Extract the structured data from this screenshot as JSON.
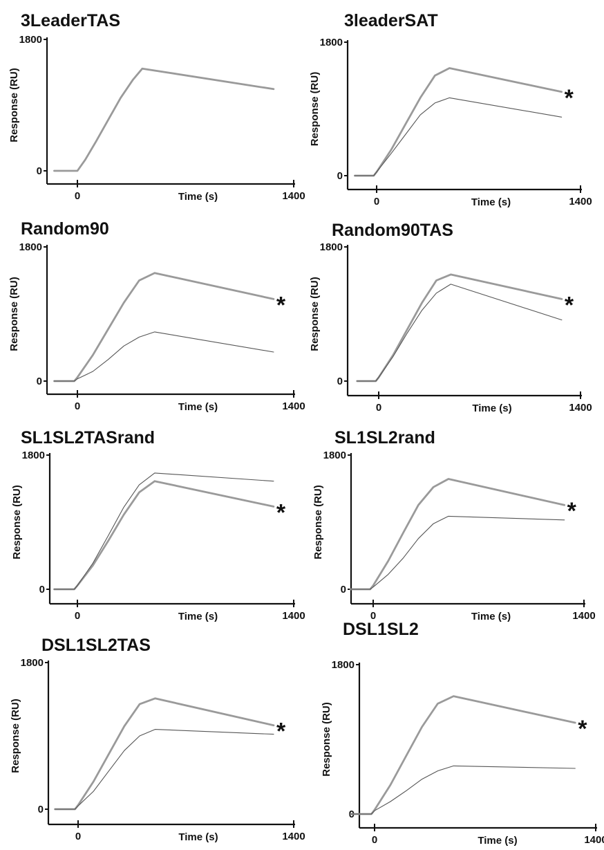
{
  "chart_data": [
    {
      "type": "line",
      "title": "3LeaderTAS",
      "xlabel": "Time (s)",
      "ylabel": "Response (RU)",
      "xlim": [
        -250,
        1400
      ],
      "ylim": [
        -100,
        1800
      ],
      "xticks": [
        0,
        1400
      ],
      "yticks": [
        0,
        1800
      ],
      "series": [
        {
          "x": [
            -150,
            0,
            50,
            120,
            200,
            280,
            360,
            420,
            1270
          ],
          "y": [
            0,
            0,
            150,
            400,
            700,
            1000,
            1250,
            1400,
            1120
          ]
        }
      ]
    },
    {
      "type": "line",
      "title": "3leaderSAT",
      "xlabel": "Time (s)",
      "ylabel": "Response (RU)",
      "xlim": [
        -250,
        1400
      ],
      "ylim": [
        -100,
        1800
      ],
      "xticks": [
        0,
        1400
      ],
      "yticks": [
        0,
        1800
      ],
      "annotation": "*",
      "series": [
        {
          "x": [
            -150,
            -20,
            0,
            100,
            200,
            300,
            400,
            500,
            1270
          ],
          "y": [
            0,
            0,
            50,
            350,
            700,
            1050,
            1350,
            1450,
            1130
          ]
        },
        {
          "x": [
            -150,
            -20,
            0,
            100,
            200,
            300,
            400,
            500,
            1270
          ],
          "y": [
            0,
            0,
            50,
            300,
            560,
            820,
            980,
            1050,
            790
          ]
        }
      ]
    },
    {
      "type": "line",
      "title": "Random90",
      "xlabel": "Time (s)",
      "ylabel": "Response (RU)",
      "xlim": [
        -250,
        1400
      ],
      "ylim": [
        -100,
        1800
      ],
      "xticks": [
        0,
        1400
      ],
      "yticks": [
        0,
        1800
      ],
      "annotation": "*",
      "series": [
        {
          "x": [
            -150,
            -20,
            0,
            100,
            200,
            300,
            400,
            500,
            1270
          ],
          "y": [
            0,
            0,
            50,
            350,
            700,
            1050,
            1350,
            1450,
            1100
          ]
        },
        {
          "x": [
            -150,
            -20,
            0,
            100,
            200,
            300,
            400,
            500,
            1270
          ],
          "y": [
            0,
            0,
            30,
            130,
            290,
            470,
            590,
            660,
            390
          ]
        }
      ]
    },
    {
      "type": "line",
      "title": "Random90TAS",
      "xlabel": "Time (s)",
      "ylabel": "Response (RU)",
      "xlim": [
        -250,
        1400
      ],
      "ylim": [
        -100,
        1800
      ],
      "xticks": [
        0,
        1400
      ],
      "yticks": [
        0,
        1800
      ],
      "annotation": "*",
      "series": [
        {
          "x": [
            -150,
            -20,
            0,
            100,
            200,
            300,
            400,
            500,
            1270
          ],
          "y": [
            0,
            0,
            50,
            350,
            700,
            1050,
            1350,
            1430,
            1100
          ]
        },
        {
          "x": [
            -150,
            -20,
            0,
            100,
            200,
            300,
            400,
            500,
            1270
          ],
          "y": [
            0,
            0,
            50,
            330,
            650,
            950,
            1180,
            1300,
            820
          ]
        }
      ]
    },
    {
      "type": "line",
      "title": "SL1SL2TASrand",
      "xlabel": "Time (s)",
      "ylabel": "Response (RU)",
      "xlim": [
        -250,
        1400
      ],
      "ylim": [
        -100,
        1800
      ],
      "xticks": [
        0,
        1400
      ],
      "yticks": [
        0,
        1800
      ],
      "annotation": "*",
      "series": [
        {
          "x": [
            -150,
            -20,
            0,
            100,
            200,
            300,
            400,
            500,
            1270
          ],
          "y": [
            0,
            0,
            50,
            320,
            650,
            1000,
            1300,
            1450,
            1110
          ]
        },
        {
          "x": [
            -150,
            -20,
            0,
            100,
            200,
            300,
            400,
            500,
            1270
          ],
          "y": [
            0,
            0,
            50,
            350,
            720,
            1100,
            1400,
            1560,
            1450
          ]
        }
      ]
    },
    {
      "type": "line",
      "title": "SL1SL2rand",
      "xlabel": "Time (s)",
      "ylabel": "Response (RU)",
      "xlim": [
        -250,
        1400
      ],
      "ylim": [
        -100,
        1800
      ],
      "xticks": [
        0,
        1400
      ],
      "yticks": [
        0,
        1800
      ],
      "annotation": "*",
      "series": [
        {
          "x": [
            -150,
            -20,
            0,
            100,
            200,
            300,
            400,
            500,
            1270
          ],
          "y": [
            0,
            0,
            50,
            380,
            760,
            1130,
            1370,
            1480,
            1130
          ]
        },
        {
          "x": [
            -150,
            -20,
            0,
            100,
            200,
            300,
            400,
            500,
            1270
          ],
          "y": [
            0,
            0,
            30,
            200,
            420,
            680,
            880,
            980,
            930
          ]
        }
      ]
    },
    {
      "type": "line",
      "title": "DSL1SL2TAS",
      "xlabel": "Time (s)",
      "ylabel": "Response (RU)",
      "xlim": [
        -250,
        1400
      ],
      "ylim": [
        -100,
        1800
      ],
      "xticks": [
        0,
        1400
      ],
      "yticks": [
        0,
        1800
      ],
      "annotation": "*",
      "series": [
        {
          "x": [
            -150,
            -20,
            0,
            100,
            200,
            300,
            400,
            500,
            1270
          ],
          "y": [
            0,
            0,
            50,
            340,
            680,
            1020,
            1290,
            1360,
            1030
          ]
        },
        {
          "x": [
            -150,
            -20,
            0,
            100,
            200,
            300,
            400,
            500,
            1270
          ],
          "y": [
            0,
            0,
            40,
            220,
            470,
            720,
            900,
            980,
            920
          ]
        }
      ]
    },
    {
      "type": "line",
      "title": "DSL1SL2",
      "xlabel": "Time (s)",
      "ylabel": "Response (RU)",
      "xlim": [
        -250,
        1400
      ],
      "ylim": [
        -100,
        1800
      ],
      "xticks": [
        0,
        1400
      ],
      "yticks": [
        0,
        1800
      ],
      "annotation": "*",
      "series": [
        {
          "x": [
            -150,
            -20,
            0,
            100,
            200,
            300,
            400,
            500,
            1270
          ],
          "y": [
            0,
            0,
            50,
            350,
            700,
            1050,
            1330,
            1420,
            1100
          ]
        },
        {
          "x": [
            -150,
            -20,
            0,
            100,
            200,
            300,
            400,
            500,
            1270
          ],
          "y": [
            0,
            0,
            40,
            150,
            280,
            420,
            520,
            580,
            550
          ]
        }
      ]
    }
  ]
}
